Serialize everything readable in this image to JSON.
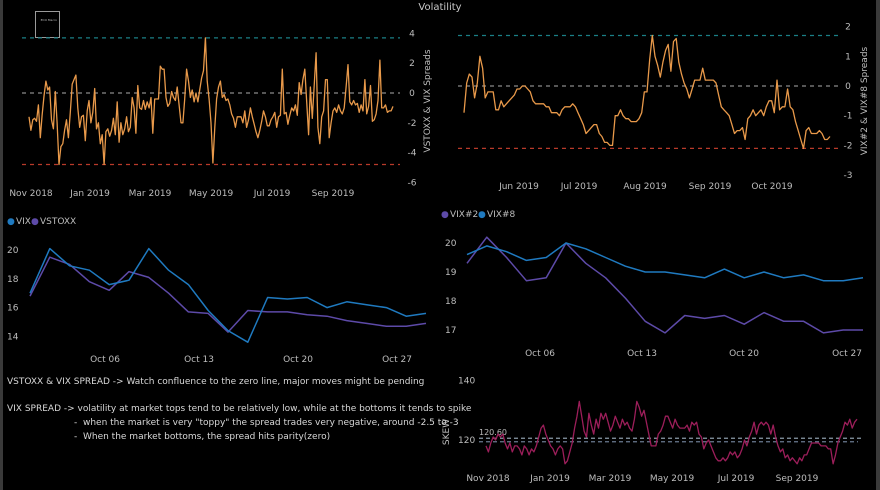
{
  "page": {
    "title": "Volatility",
    "logo_text": "ECO Macro"
  },
  "notes": [
    "VSTOXX & VIX SPREAD -> Watch confluence to the zero line, major moves might be pending",
    "VIX SPREAD -> volatility at market tops tend to be relatively low, while at the bottoms it tends to spike",
    "-  when the market is very \"toppy\" the spread trades very negative, around -2.5 to -3",
    "-  When the market bottoms, the spread hits parity(zero)"
  ],
  "colors": {
    "spread_line": "#e8994a",
    "upper_band": "#1a7f86",
    "zero_line": "#8a8a8a",
    "lower_band": "#b83a2a",
    "vix": "#1f7ac0",
    "vstoxx": "#5d4aa8",
    "vix2": "#5d4aa8",
    "vix8": "#1f7ac0",
    "skew": "#9c1e5a",
    "skew_ref": "#8a9aa8"
  },
  "chart_data": [
    {
      "id": "vstoxx-vix-spread",
      "type": "line",
      "title": "",
      "ylabel": "VSTOXX & VIX Spreads",
      "ylim": [
        -6,
        4
      ],
      "yticks": [
        "4",
        "2",
        "0",
        "-2",
        "-4",
        "-6"
      ],
      "xticks": [
        "Nov 2018",
        "Jan 2019",
        "Mar 2019",
        "May 2019",
        "Jul 2019",
        "Sep 2019"
      ],
      "reference_lines": [
        3.7,
        0,
        -4.8
      ],
      "series": [
        {
          "name": "Spread",
          "values": [
            -1.6,
            -2.5,
            -1.8,
            -1.7,
            -1.9,
            -0.8,
            -3.0,
            -1.5,
            -0.2,
            0.8,
            0.2,
            0.4,
            -1.8,
            -2.4,
            0.1,
            -2.0,
            -4.8,
            -3.6,
            -3.4,
            -2.5,
            -1.8,
            -3.0,
            -1.3,
            0.6,
            0.9,
            1.2,
            -1.0,
            -2.3,
            -1.6,
            -1.5,
            -3.2,
            -1.2,
            -0.5,
            -2.0,
            -1.3,
            0.3,
            -2.4,
            -2.0,
            -3.4,
            -2.8,
            -4.8,
            -2.6,
            -2.4,
            -2.9,
            -2.5,
            -1.7,
            -2.8,
            -0.6,
            -3.3,
            -2.0,
            -2.8,
            -2.4,
            -1.6,
            -2.6,
            -2.3,
            -0.3,
            -1.0,
            -2.7,
            0.5,
            -1.0,
            -1.1,
            -0.5,
            -1.1,
            -0.6,
            -1.0,
            -0.3,
            -2.7,
            -0.4,
            -0.4,
            -0.4,
            1.8,
            1.6,
            1.6,
            -0.3,
            -0.9,
            -0.7,
            0.1,
            -0.3,
            -0.5,
            0.4,
            -0.8,
            -2.0,
            -2.0,
            -0.4,
            1.6,
            0.8,
            -0.3,
            0.2,
            -0.6,
            0.0,
            -0.6,
            0.2,
            1.0,
            1.5,
            3.7,
            0.8,
            -0.4,
            -2.0,
            -4.7,
            -2.3,
            -0.4,
            0.4,
            0.8,
            -0.3,
            -0.1,
            -0.5,
            -0.4,
            -0.8,
            -1.4,
            -1.7,
            -2.3,
            -1.6,
            -1.6,
            -1.6,
            -2.0,
            -1.2,
            -2.3,
            -1.8,
            -1.0,
            -1.6,
            -2.1,
            -2.6,
            -3.0,
            -2.5,
            -1.9,
            -1.2,
            -1.6,
            -2.2,
            -2.2,
            -1.8,
            -1.6,
            -1.3,
            -2.3,
            -1.6,
            -1.5,
            1.6,
            -1.4,
            -1.3,
            -2.1,
            -1.5,
            -1.0,
            -1.2,
            -0.8,
            -1.5,
            0.7,
            -0.1,
            0.9,
            1.6,
            -0.6,
            -2.8,
            0.4,
            -1.7,
            0.5,
            2.7,
            -2.3,
            -3.4,
            -1.6,
            -1.2,
            0.9,
            0.9,
            -3.0,
            -2.0,
            -1.2,
            -1.0,
            -1.3,
            -0.8,
            -1.2,
            -1.4,
            -1.0,
            0.4,
            1.9,
            -0.6,
            -0.8,
            -0.5,
            -0.8,
            -0.7,
            -1.3,
            -0.8,
            -1.2,
            0.9,
            -1.4,
            -0.9,
            0.5,
            -1.9,
            -1.8,
            -1.4,
            -0.5,
            2.2,
            -1.0,
            -1.0,
            -0.8,
            -1.3,
            -1.2,
            -1.2,
            -0.9
          ]
        }
      ]
    },
    {
      "id": "vix2-vix8-spread",
      "type": "line",
      "title": "",
      "ylabel": "VIX#2 & VIX#8 Spreads",
      "ylim": [
        -3,
        2
      ],
      "yticks": [
        "2",
        "1",
        "0",
        "-1",
        "-2",
        "-3"
      ],
      "xticks": [
        "Jun 2019",
        "Jul 2019",
        "Aug 2019",
        "Sep 2019",
        "Oct 2019"
      ],
      "reference_lines": [
        1.7,
        0,
        -2.1
      ],
      "series": [
        {
          "name": "Spread",
          "values": [
            -0.9,
            0.1,
            0.4,
            0.3,
            -0.4,
            0.1,
            1.0,
            0.6,
            -0.4,
            -0.2,
            -0.2,
            -0.2,
            -0.8,
            -0.8,
            -0.5,
            -0.7,
            -0.6,
            -0.5,
            -0.4,
            -0.3,
            -0.1,
            -0.1,
            0.0,
            0.0,
            -0.1,
            -0.2,
            -0.5,
            -0.6,
            -0.6,
            -0.6,
            -0.6,
            -0.7,
            -0.7,
            -0.9,
            -0.9,
            -0.9,
            -1.0,
            -0.8,
            -0.7,
            -0.7,
            -0.7,
            -0.6,
            -0.7,
            -0.9,
            -1.1,
            -1.3,
            -1.6,
            -1.5,
            -1.4,
            -1.3,
            -1.3,
            -1.6,
            -1.7,
            -1.9,
            -1.9,
            -2.0,
            -2.0,
            -1.0,
            -1.0,
            -0.8,
            -1.0,
            -1.1,
            -1.1,
            -1.2,
            -1.2,
            -1.2,
            -1.1,
            -0.9,
            -0.2,
            -0.2,
            0.9,
            1.7,
            1.0,
            0.7,
            0.3,
            0.8,
            1.2,
            1.4,
            0.5,
            1.5,
            1.6,
            0.8,
            0.4,
            0.1,
            -0.1,
            -0.4,
            -0.1,
            0.2,
            0.2,
            0.2,
            0.6,
            0.2,
            0.2,
            0.2,
            0.2,
            0.1,
            -0.3,
            -0.7,
            -0.8,
            -0.9,
            -1.0,
            -1.3,
            -1.6,
            -1.5,
            -1.5,
            -1.4,
            -1.8,
            -1.1,
            -1.0,
            -0.8,
            -1.0,
            -0.9,
            -0.8,
            -1.0,
            -0.7,
            -0.5,
            -0.5,
            -0.9,
            0.2,
            -0.8,
            -0.7,
            -0.7,
            -0.1,
            -0.7,
            -0.8,
            -1.2,
            -1.5,
            -1.8,
            -2.1,
            -1.5,
            -1.4,
            -1.6,
            -1.6,
            -1.6,
            -1.5,
            -1.6,
            -1.8,
            -1.8,
            -1.7
          ]
        }
      ]
    },
    {
      "id": "vix-vstoxx",
      "type": "line",
      "legend": [
        "VIX",
        "VSTOXX"
      ],
      "legend_position": "top-left",
      "ylim": [
        13,
        21
      ],
      "yticks": [
        "20",
        "18",
        "16",
        "14"
      ],
      "xticks": [
        "Oct 06",
        "Oct 13",
        "Oct 20",
        "Oct 27"
      ],
      "x": [
        "Oct 01",
        "Oct 02",
        "Oct 03",
        "Oct 04",
        "Oct 07",
        "Oct 08",
        "Oct 09",
        "Oct 10",
        "Oct 11",
        "Oct 14",
        "Oct 15",
        "Oct 16",
        "Oct 17",
        "Oct 18",
        "Oct 21",
        "Oct 22",
        "Oct 23",
        "Oct 24",
        "Oct 25",
        "Oct 28",
        "Oct 29"
      ],
      "series": [
        {
          "name": "VIX",
          "values": [
            17.0,
            20.1,
            18.9,
            18.6,
            17.6,
            17.9,
            20.1,
            18.6,
            17.6,
            15.8,
            14.4,
            13.6,
            16.7,
            16.6,
            16.7,
            16.0,
            16.4,
            16.2,
            16.0,
            15.4,
            15.6
          ]
        },
        {
          "name": "VSTOXX",
          "values": [
            16.8,
            19.5,
            19.0,
            17.8,
            17.2,
            18.5,
            18.1,
            17.0,
            15.7,
            15.6,
            14.3,
            15.8,
            15.7,
            15.7,
            15.5,
            15.4,
            15.1,
            14.9,
            14.7,
            14.7,
            14.9
          ]
        }
      ]
    },
    {
      "id": "vix2-vix8",
      "type": "line",
      "legend": [
        "VIX#2",
        "VIX#8"
      ],
      "legend_position": "top-left",
      "ylim": [
        16.5,
        20.5
      ],
      "yticks": [
        "20",
        "19",
        "18",
        "17"
      ],
      "xticks": [
        "Oct 06",
        "Oct 13",
        "Oct 20",
        "Oct 27"
      ],
      "x": [
        "Oct 01",
        "Oct 02",
        "Oct 03",
        "Oct 04",
        "Oct 07",
        "Oct 08",
        "Oct 09",
        "Oct 10",
        "Oct 11",
        "Oct 14",
        "Oct 15",
        "Oct 16",
        "Oct 17",
        "Oct 18",
        "Oct 21",
        "Oct 22",
        "Oct 23",
        "Oct 24",
        "Oct 25",
        "Oct 28",
        "Oct 29"
      ],
      "series": [
        {
          "name": "VIX#2",
          "values": [
            19.3,
            20.2,
            19.5,
            18.7,
            18.8,
            20.0,
            19.3,
            18.8,
            18.1,
            17.3,
            16.9,
            17.5,
            17.4,
            17.5,
            17.2,
            17.6,
            17.3,
            17.3,
            16.9,
            17.0,
            17.0
          ]
        },
        {
          "name": "VIX#8",
          "values": [
            19.6,
            19.9,
            19.7,
            19.4,
            19.5,
            20.0,
            19.8,
            19.5,
            19.2,
            19.0,
            19.0,
            18.9,
            18.8,
            19.1,
            18.8,
            19.0,
            18.8,
            18.9,
            18.7,
            18.7,
            18.8
          ]
        }
      ]
    },
    {
      "id": "skew",
      "type": "line",
      "ylabel": "SKEW",
      "ylim": [
        110,
        142
      ],
      "yticks": [
        "140",
        "120"
      ],
      "xticks": [
        "Nov 2018",
        "Jan 2019",
        "Mar 2019",
        "May 2019",
        "Jul 2019",
        "Sep 2019"
      ],
      "reference_lines": [
        120.6,
        119.4
      ],
      "annotation": "120.60",
      "series": [
        {
          "name": "SKEW",
          "values": [
            118,
            116,
            119,
            121,
            120,
            122,
            121,
            122,
            119,
            117,
            119,
            116,
            118,
            118,
            117,
            115,
            118,
            117,
            115,
            117,
            116,
            118,
            121,
            124,
            125,
            122,
            120,
            118,
            117,
            115,
            117,
            118,
            117,
            112,
            113,
            116,
            119,
            124,
            128,
            133,
            128,
            123,
            121,
            129,
            125,
            122,
            127,
            124,
            129,
            127,
            129,
            126,
            123,
            125,
            128,
            126,
            124,
            127,
            125,
            126,
            124,
            123,
            127,
            133,
            131,
            128,
            130,
            126,
            122,
            118,
            118,
            118,
            122,
            123,
            125,
            128,
            128,
            126,
            124,
            127,
            125,
            124,
            124,
            124,
            125,
            123,
            126,
            125,
            126,
            122,
            121,
            117,
            119,
            120,
            118,
            116,
            114,
            113,
            113,
            114,
            113,
            114,
            116,
            115,
            116,
            114,
            115,
            117,
            120,
            118,
            121,
            123,
            126,
            122,
            125,
            126,
            125,
            126,
            125,
            122,
            125,
            121,
            118,
            116,
            117,
            114,
            115,
            113,
            114,
            113,
            112,
            114,
            113,
            115,
            115,
            117,
            119,
            119,
            119,
            119,
            118,
            118,
            118,
            117,
            117,
            112,
            115,
            119,
            121,
            123,
            126,
            125,
            127,
            124,
            126,
            127
          ]
        }
      ]
    }
  ]
}
